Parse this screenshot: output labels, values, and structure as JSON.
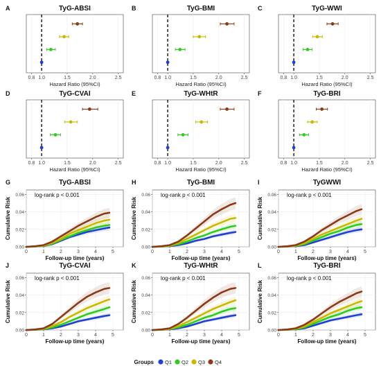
{
  "colors": {
    "Q1": "#1f3fd6",
    "Q2": "#2ecc1f",
    "Q3": "#c8b900",
    "Q4": "#8b3a17"
  },
  "legend": {
    "title": "Groups",
    "items": [
      "Q1",
      "Q2",
      "Q3",
      "Q4"
    ]
  },
  "chart_data": [
    {
      "panel": "A",
      "title": "TyG-ABSI",
      "type": "scatter",
      "xlabel": "Hazard Ratio (95%CI)",
      "xlim": [
        0.7,
        2.6
      ],
      "xticks": [
        "0.8",
        "1.0",
        "1.5",
        "2.0",
        "2.5"
      ],
      "reference_line": 1.0,
      "series": [
        {
          "name": "Q1",
          "hr": 1.0,
          "lo": 1.0,
          "hi": 1.0
        },
        {
          "name": "Q2",
          "hr": 1.18,
          "lo": 1.1,
          "hi": 1.27
        },
        {
          "name": "Q3",
          "hr": 1.44,
          "lo": 1.35,
          "hi": 1.53
        },
        {
          "name": "Q4",
          "hr": 1.7,
          "lo": 1.6,
          "hi": 1.8
        }
      ]
    },
    {
      "panel": "B",
      "title": "TyG-BMI",
      "type": "scatter",
      "xlabel": "Hazard Ratio (95%CI)",
      "xlim": [
        0.7,
        2.6
      ],
      "xticks": [
        "0.8",
        "1.0",
        "1.5",
        "2.0",
        "2.5"
      ],
      "reference_line": 1.0,
      "series": [
        {
          "name": "Q1",
          "hr": 1.0,
          "lo": 1.0,
          "hi": 1.0
        },
        {
          "name": "Q2",
          "hr": 1.24,
          "lo": 1.15,
          "hi": 1.34
        },
        {
          "name": "Q3",
          "hr": 1.62,
          "lo": 1.5,
          "hi": 1.74
        },
        {
          "name": "Q4",
          "hr": 2.16,
          "lo": 2.03,
          "hi": 2.3
        }
      ]
    },
    {
      "panel": "C",
      "title": "TyG-WWI",
      "type": "scatter",
      "xlabel": "Hazard Ratio (95%CI)",
      "xlim": [
        0.7,
        2.6
      ],
      "xticks": [
        "0.8",
        "1.0",
        "1.5",
        "2.0",
        "2.5"
      ],
      "reference_line": 1.0,
      "series": [
        {
          "name": "Q1",
          "hr": 1.0,
          "lo": 1.0,
          "hi": 1.0
        },
        {
          "name": "Q2",
          "hr": 1.27,
          "lo": 1.18,
          "hi": 1.36
        },
        {
          "name": "Q3",
          "hr": 1.46,
          "lo": 1.37,
          "hi": 1.56
        },
        {
          "name": "Q4",
          "hr": 1.76,
          "lo": 1.65,
          "hi": 1.87
        }
      ]
    },
    {
      "panel": "D",
      "title": "TyG-CVAI",
      "type": "scatter",
      "xlabel": "Hazard Ratio (95%CI)",
      "xlim": [
        0.7,
        2.6
      ],
      "xticks": [
        "0.8",
        "1.0",
        "1.5",
        "2.0",
        "2.5"
      ],
      "reference_line": 1.0,
      "series": [
        {
          "name": "Q1",
          "hr": 1.0,
          "lo": 1.0,
          "hi": 1.0
        },
        {
          "name": "Q2",
          "hr": 1.27,
          "lo": 1.17,
          "hi": 1.37
        },
        {
          "name": "Q3",
          "hr": 1.57,
          "lo": 1.45,
          "hi": 1.7
        },
        {
          "name": "Q4",
          "hr": 1.94,
          "lo": 1.8,
          "hi": 2.1
        }
      ]
    },
    {
      "panel": "E",
      "title": "TyG-WHtR",
      "type": "scatter",
      "xlabel": "Hazard Ratio (95%CI)",
      "xlim": [
        0.7,
        2.6
      ],
      "xticks": [
        "0.8",
        "1.0",
        "1.5",
        "2.0",
        "2.5"
      ],
      "reference_line": 1.0,
      "series": [
        {
          "name": "Q1",
          "hr": 1.0,
          "lo": 1.0,
          "hi": 1.0
        },
        {
          "name": "Q2",
          "hr": 1.3,
          "lo": 1.2,
          "hi": 1.4
        },
        {
          "name": "Q3",
          "hr": 1.66,
          "lo": 1.55,
          "hi": 1.78
        },
        {
          "name": "Q4",
          "hr": 2.16,
          "lo": 2.03,
          "hi": 2.3
        }
      ]
    },
    {
      "panel": "F",
      "title": "TyG-BRI",
      "type": "scatter",
      "xlabel": "Hazard Ratio (95%CI)",
      "xlim": [
        0.7,
        2.6
      ],
      "xticks": [
        "0.8",
        "1.0",
        "1.5",
        "2.0",
        "2.5"
      ],
      "reference_line": 1.0,
      "series": [
        {
          "name": "Q1",
          "hr": 1.0,
          "lo": 1.0,
          "hi": 1.0
        },
        {
          "name": "Q2",
          "hr": 1.2,
          "lo": 1.11,
          "hi": 1.29
        },
        {
          "name": "Q3",
          "hr": 1.36,
          "lo": 1.27,
          "hi": 1.46
        },
        {
          "name": "Q4",
          "hr": 1.55,
          "lo": 1.44,
          "hi": 1.66
        }
      ]
    },
    {
      "panel": "G",
      "title": "TyG-ABSI",
      "type": "line",
      "annotation": "log-rank p < 0.001",
      "xlabel": "Follow-up time (years)",
      "ylabel": "Cumulative Risk",
      "xlim": [
        0,
        5.6
      ],
      "ylim": [
        0,
        0.065
      ],
      "xticks": [
        "0",
        "1",
        "2",
        "3",
        "4",
        "5"
      ],
      "yticks": [
        "0.00",
        "0.02",
        "0.04",
        "0.06"
      ],
      "x": [
        0,
        0.5,
        1,
        1.5,
        2,
        2.5,
        3,
        3.5,
        4,
        4.5,
        4.8
      ],
      "series": [
        {
          "name": "Q1",
          "values": [
            0,
            0.0003,
            0.001,
            0.003,
            0.007,
            0.011,
            0.014,
            0.017,
            0.019,
            0.021,
            0.022
          ]
        },
        {
          "name": "Q2",
          "values": [
            0,
            0.0004,
            0.0012,
            0.0035,
            0.008,
            0.012,
            0.016,
            0.019,
            0.022,
            0.024,
            0.025
          ]
        },
        {
          "name": "Q3",
          "values": [
            0,
            0.0005,
            0.0015,
            0.0045,
            0.009,
            0.015,
            0.019,
            0.023,
            0.027,
            0.03,
            0.031
          ]
        },
        {
          "name": "Q4",
          "values": [
            0,
            0.0006,
            0.002,
            0.006,
            0.012,
            0.018,
            0.024,
            0.029,
            0.034,
            0.038,
            0.039
          ]
        }
      ]
    },
    {
      "panel": "H",
      "title": "TyG-BMI",
      "type": "line",
      "annotation": "log-rank p < 0.001",
      "xlabel": "Follow-up time (years)",
      "ylabel": "Cumulative Risk",
      "xlim": [
        0,
        5.6
      ],
      "ylim": [
        0,
        0.065
      ],
      "xticks": [
        "0",
        "1",
        "2",
        "3",
        "4",
        "5"
      ],
      "yticks": [
        "0.00",
        "0.02",
        "0.04",
        "0.06"
      ],
      "x": [
        0,
        0.5,
        1,
        1.5,
        2,
        2.5,
        3,
        3.5,
        4,
        4.5,
        4.8
      ],
      "series": [
        {
          "name": "Q1",
          "values": [
            0,
            0.0002,
            0.0008,
            0.002,
            0.004,
            0.007,
            0.009,
            0.012,
            0.014,
            0.016,
            0.017
          ]
        },
        {
          "name": "Q2",
          "values": [
            0,
            0.0003,
            0.001,
            0.003,
            0.006,
            0.01,
            0.013,
            0.017,
            0.02,
            0.023,
            0.024
          ]
        },
        {
          "name": "Q3",
          "values": [
            0,
            0.0004,
            0.0014,
            0.0045,
            0.009,
            0.014,
            0.019,
            0.024,
            0.028,
            0.032,
            0.033
          ]
        },
        {
          "name": "Q4",
          "values": [
            0,
            0.0006,
            0.002,
            0.006,
            0.013,
            0.021,
            0.029,
            0.037,
            0.043,
            0.048,
            0.05
          ]
        }
      ]
    },
    {
      "panel": "I",
      "title": "TyGWWI",
      "type": "line",
      "annotation": "log-rank p < 0.001",
      "xlabel": "Follow-up time (years)",
      "ylabel": "Cumulative Risk",
      "xlim": [
        0,
        5.6
      ],
      "ylim": [
        0,
        0.065
      ],
      "xticks": [
        "0",
        "1",
        "2",
        "3",
        "4",
        "5"
      ],
      "yticks": [
        "0.00",
        "0.02",
        "0.04",
        "0.06"
      ],
      "x": [
        0,
        0.5,
        1,
        1.5,
        2,
        2.5,
        3,
        3.5,
        4,
        4.5,
        4.8
      ],
      "series": [
        {
          "name": "Q1",
          "values": [
            0,
            0.0002,
            0.0008,
            0.002,
            0.005,
            0.008,
            0.011,
            0.014,
            0.017,
            0.019,
            0.02
          ]
        },
        {
          "name": "Q2",
          "values": [
            0,
            0.0003,
            0.001,
            0.003,
            0.007,
            0.011,
            0.015,
            0.018,
            0.022,
            0.025,
            0.026
          ]
        },
        {
          "name": "Q3",
          "values": [
            0,
            0.0004,
            0.0014,
            0.0042,
            0.009,
            0.014,
            0.018,
            0.022,
            0.026,
            0.03,
            0.032
          ]
        },
        {
          "name": "Q4",
          "values": [
            0,
            0.0006,
            0.002,
            0.006,
            0.012,
            0.019,
            0.025,
            0.031,
            0.036,
            0.041,
            0.043
          ]
        }
      ]
    },
    {
      "panel": "J",
      "title": "TyG-CVAI",
      "type": "line",
      "annotation": "log-rank p < 0.001",
      "xlabel": "Follow-up time (years)",
      "ylabel": "Cumulative Risk",
      "xlim": [
        0,
        5.6
      ],
      "ylim": [
        0,
        0.065
      ],
      "xticks": [
        "0",
        "1",
        "2",
        "3",
        "4",
        "5"
      ],
      "yticks": [
        "0.00",
        "0.02",
        "0.04",
        "0.06"
      ],
      "x": [
        0,
        0.5,
        1,
        1.5,
        2,
        2.5,
        3,
        3.5,
        4,
        4.5,
        4.8
      ],
      "series": [
        {
          "name": "Q1",
          "values": [
            0,
            0.0002,
            0.0008,
            0.002,
            0.004,
            0.007,
            0.01,
            0.012,
            0.014,
            0.016,
            0.017
          ]
        },
        {
          "name": "Q2",
          "values": [
            0,
            0.0003,
            0.001,
            0.003,
            0.006,
            0.01,
            0.014,
            0.018,
            0.021,
            0.024,
            0.026
          ]
        },
        {
          "name": "Q3",
          "values": [
            0,
            0.0004,
            0.0014,
            0.0045,
            0.009,
            0.015,
            0.02,
            0.025,
            0.029,
            0.033,
            0.035
          ]
        },
        {
          "name": "Q4",
          "values": [
            0,
            0.0006,
            0.002,
            0.007,
            0.015,
            0.023,
            0.031,
            0.038,
            0.043,
            0.047,
            0.048
          ]
        }
      ]
    },
    {
      "panel": "K",
      "title": "TyG-WHtR",
      "type": "line",
      "annotation": "log-rank p < 0.001",
      "xlabel": "Follow-up time (years)",
      "ylabel": "Cumulative Risk",
      "xlim": [
        0,
        5.6
      ],
      "ylim": [
        0,
        0.065
      ],
      "xticks": [
        "0",
        "1",
        "2",
        "3",
        "4",
        "5"
      ],
      "yticks": [
        "0.00",
        "0.02",
        "0.04",
        "0.06"
      ],
      "x": [
        0,
        0.5,
        1,
        1.5,
        2,
        2.5,
        3,
        3.5,
        4,
        4.5,
        4.8
      ],
      "series": [
        {
          "name": "Q1",
          "values": [
            0,
            0.0002,
            0.0008,
            0.002,
            0.004,
            0.007,
            0.01,
            0.012,
            0.014,
            0.016,
            0.017
          ]
        },
        {
          "name": "Q2",
          "values": [
            0,
            0.0003,
            0.001,
            0.003,
            0.006,
            0.01,
            0.014,
            0.017,
            0.021,
            0.024,
            0.025
          ]
        },
        {
          "name": "Q3",
          "values": [
            0,
            0.0004,
            0.0014,
            0.0045,
            0.009,
            0.014,
            0.019,
            0.024,
            0.028,
            0.032,
            0.034
          ]
        },
        {
          "name": "Q4",
          "values": [
            0,
            0.0006,
            0.002,
            0.007,
            0.014,
            0.022,
            0.03,
            0.037,
            0.043,
            0.047,
            0.048
          ]
        }
      ]
    },
    {
      "panel": "L",
      "title": "TyG-BRI",
      "type": "line",
      "annotation": "log-rank p < 0.001",
      "xlabel": "Follow-up time (years)",
      "ylabel": "Cumulative Risk",
      "xlim": [
        0,
        5.6
      ],
      "ylim": [
        0,
        0.065
      ],
      "xticks": [
        "0",
        "1",
        "2",
        "3",
        "4",
        "5"
      ],
      "yticks": [
        "0.00",
        "0.02",
        "0.04",
        "0.06"
      ],
      "x": [
        0,
        0.5,
        1,
        1.5,
        2,
        2.5,
        3,
        3.5,
        4,
        4.5,
        4.8
      ],
      "series": [
        {
          "name": "Q1",
          "values": [
            0,
            0.0002,
            0.0008,
            0.002,
            0.005,
            0.008,
            0.011,
            0.013,
            0.015,
            0.017,
            0.018
          ]
        },
        {
          "name": "Q2",
          "values": [
            0,
            0.0003,
            0.001,
            0.003,
            0.007,
            0.011,
            0.015,
            0.018,
            0.022,
            0.025,
            0.026
          ]
        },
        {
          "name": "Q3",
          "values": [
            0,
            0.0004,
            0.0014,
            0.0042,
            0.009,
            0.014,
            0.019,
            0.023,
            0.027,
            0.031,
            0.033
          ]
        },
        {
          "name": "Q4",
          "values": [
            0,
            0.0006,
            0.002,
            0.006,
            0.012,
            0.019,
            0.026,
            0.032,
            0.037,
            0.042,
            0.044
          ]
        }
      ]
    }
  ]
}
